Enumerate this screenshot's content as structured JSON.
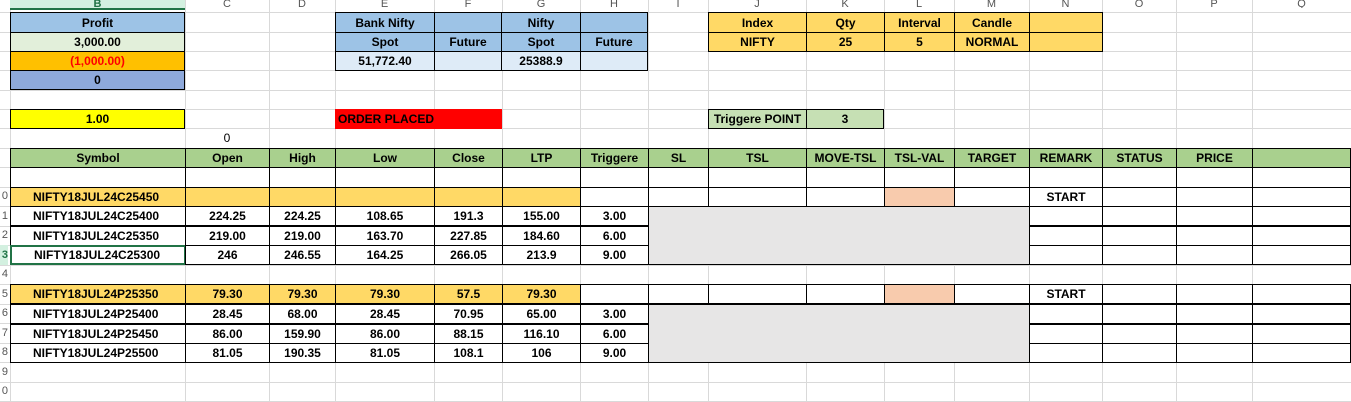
{
  "columns": [
    "B",
    "C",
    "D",
    "E",
    "F",
    "G",
    "H",
    "I",
    "J",
    "K",
    "L",
    "M",
    "N",
    "O",
    "P",
    "Q"
  ],
  "selected_column": "B",
  "row_numbers": [
    "0",
    "1",
    "2",
    "3",
    "4",
    "5",
    "6",
    "7",
    "8",
    "9",
    "0"
  ],
  "selected_row": "3",
  "summary": {
    "profit_label": "Profit",
    "profit_value": "3,000.00",
    "loss_value": "(1,000.00)",
    "zero_value": "0",
    "multiplier": "1.00",
    "c6_value": "0"
  },
  "market": {
    "bank_nifty_label": "Bank Nifty",
    "nifty_label": "Nifty",
    "spot_label": "Spot",
    "future_label": "Future",
    "bank_nifty_spot": "51,772.40",
    "nifty_spot": "25388.9",
    "order_status": "ORDER PLACED"
  },
  "settings": {
    "headers": [
      "Index",
      "Qty",
      "Interval",
      "Candle"
    ],
    "values": [
      "NIFTY",
      "25",
      "5",
      "NORMAL"
    ],
    "trigger_label": "Triggere POINT",
    "trigger_value": "3"
  },
  "table": {
    "headers": [
      "Symbol",
      "Open",
      "High",
      "Low",
      "Close",
      "LTP",
      "Triggere",
      "SL",
      "TSL",
      "MOVE-TSL",
      "TSL-VAL",
      "TARGET",
      "REMARK",
      "STATUS",
      "PRICE"
    ],
    "ce_main": {
      "symbol": "NIFTY18JUL24C25450",
      "remark": "START"
    },
    "ce_rows": [
      {
        "symbol": "NIFTY18JUL24C25400",
        "open": "224.25",
        "high": "224.25",
        "low": "108.65",
        "close": "191.3",
        "ltp": "155.00",
        "trigger": "3.00"
      },
      {
        "symbol": "NIFTY18JUL24C25350",
        "open": "219.00",
        "high": "219.00",
        "low": "163.70",
        "close": "227.85",
        "ltp": "184.60",
        "trigger": "6.00"
      },
      {
        "symbol": "NIFTY18JUL24C25300",
        "open": "246",
        "high": "246.55",
        "low": "164.25",
        "close": "266.05",
        "ltp": "213.9",
        "trigger": "9.00"
      }
    ],
    "pe_main": {
      "symbol": "NIFTY18JUL24P25350",
      "open": "79.30",
      "high": "79.30",
      "low": "79.30",
      "close": "57.5",
      "ltp": "79.30",
      "remark": "START"
    },
    "pe_rows": [
      {
        "symbol": "NIFTY18JUL24P25400",
        "open": "28.45",
        "high": "68.00",
        "low": "28.45",
        "close": "70.95",
        "ltp": "65.00",
        "trigger": "3.00"
      },
      {
        "symbol": "NIFTY18JUL24P25450",
        "open": "86.00",
        "high": "159.90",
        "low": "86.00",
        "close": "88.15",
        "ltp": "116.10",
        "trigger": "6.00"
      },
      {
        "symbol": "NIFTY18JUL24P25500",
        "open": "81.05",
        "high": "190.35",
        "low": "81.05",
        "close": "108.1",
        "ltp": "106",
        "trigger": "9.00"
      }
    ]
  }
}
